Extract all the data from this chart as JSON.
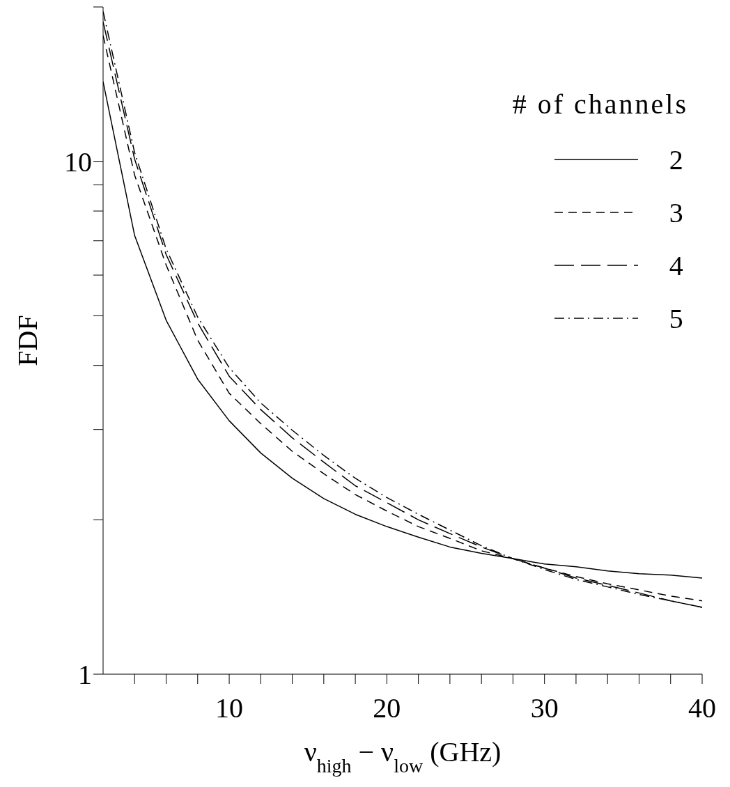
{
  "chart_data": {
    "type": "line",
    "xlabel": "ν$_{high}$ − ν$_{low}$ (GHz)",
    "ylabel": "FDF",
    "legend_title": "# of channels",
    "legend": "top right",
    "log": "y",
    "grid": false,
    "marker": "none",
    "x": [
      2,
      4,
      6,
      8,
      10,
      12,
      14,
      16,
      18,
      20,
      22,
      24,
      26,
      28,
      30,
      32,
      34,
      36,
      38,
      40
    ],
    "series": [
      {
        "name": "2",
        "color": "#000000",
        "line_style": "solid",
        "values": [
          14.3,
          7.17,
          4.9,
          3.76,
          3.12,
          2.7,
          2.41,
          2.2,
          2.05,
          1.94,
          1.85,
          1.77,
          1.72,
          1.68,
          1.64,
          1.62,
          1.59,
          1.57,
          1.56,
          1.54
        ]
      },
      {
        "name": "3",
        "color": "#000000",
        "line_style": "dashed",
        "values": [
          17.6,
          9.4,
          6.28,
          4.48,
          3.53,
          3.08,
          2.72,
          2.46,
          2.24,
          2.08,
          1.94,
          1.84,
          1.74,
          1.68,
          1.61,
          1.55,
          1.5,
          1.46,
          1.42,
          1.39
        ]
      },
      {
        "name": "4",
        "color": "#000000",
        "line_style": "longdashed",
        "values": [
          18.7,
          10.1,
          6.58,
          4.84,
          3.81,
          3.28,
          2.89,
          2.59,
          2.33,
          2.16,
          2.0,
          1.88,
          1.77,
          1.68,
          1.61,
          1.54,
          1.49,
          1.44,
          1.39,
          1.35
        ]
      },
      {
        "name": "5",
        "color": "#000000",
        "line_style": "dashdot",
        "values": [
          19.6,
          10.4,
          6.75,
          4.97,
          3.96,
          3.38,
          2.99,
          2.67,
          2.41,
          2.21,
          2.05,
          1.91,
          1.78,
          1.68,
          1.6,
          1.53,
          1.48,
          1.43,
          1.39,
          1.35
        ]
      }
    ],
    "xlim": [
      2,
      40
    ],
    "xticks": [
      {
        "value": 4,
        "label": null
      },
      {
        "value": 6,
        "label": null
      },
      {
        "value": 8,
        "label": null
      },
      10,
      {
        "value": 12,
        "label": null
      },
      {
        "value": 14,
        "label": null
      },
      {
        "value": 16,
        "label": null
      },
      {
        "value": 18,
        "label": null
      },
      20,
      {
        "value": 22,
        "label": null
      },
      {
        "value": 24,
        "label": null
      },
      {
        "value": 26,
        "label": null
      },
      {
        "value": 28,
        "label": null
      },
      30,
      {
        "value": 32,
        "label": null
      },
      {
        "value": 34,
        "label": null
      },
      {
        "value": 36,
        "label": null
      },
      {
        "value": 38,
        "label": null
      },
      40
    ],
    "ylim": [
      1,
      20
    ],
    "yticks": [
      1,
      {
        "value": 2,
        "label": null
      },
      {
        "value": 3,
        "label": null
      },
      {
        "value": 4,
        "label": null
      },
      {
        "value": 5,
        "label": null
      },
      {
        "value": 6,
        "label": null
      },
      {
        "value": 7,
        "label": null
      },
      {
        "value": 8,
        "label": null
      },
      {
        "value": 9,
        "label": null
      },
      10,
      {
        "value": 20,
        "label": null
      }
    ]
  }
}
